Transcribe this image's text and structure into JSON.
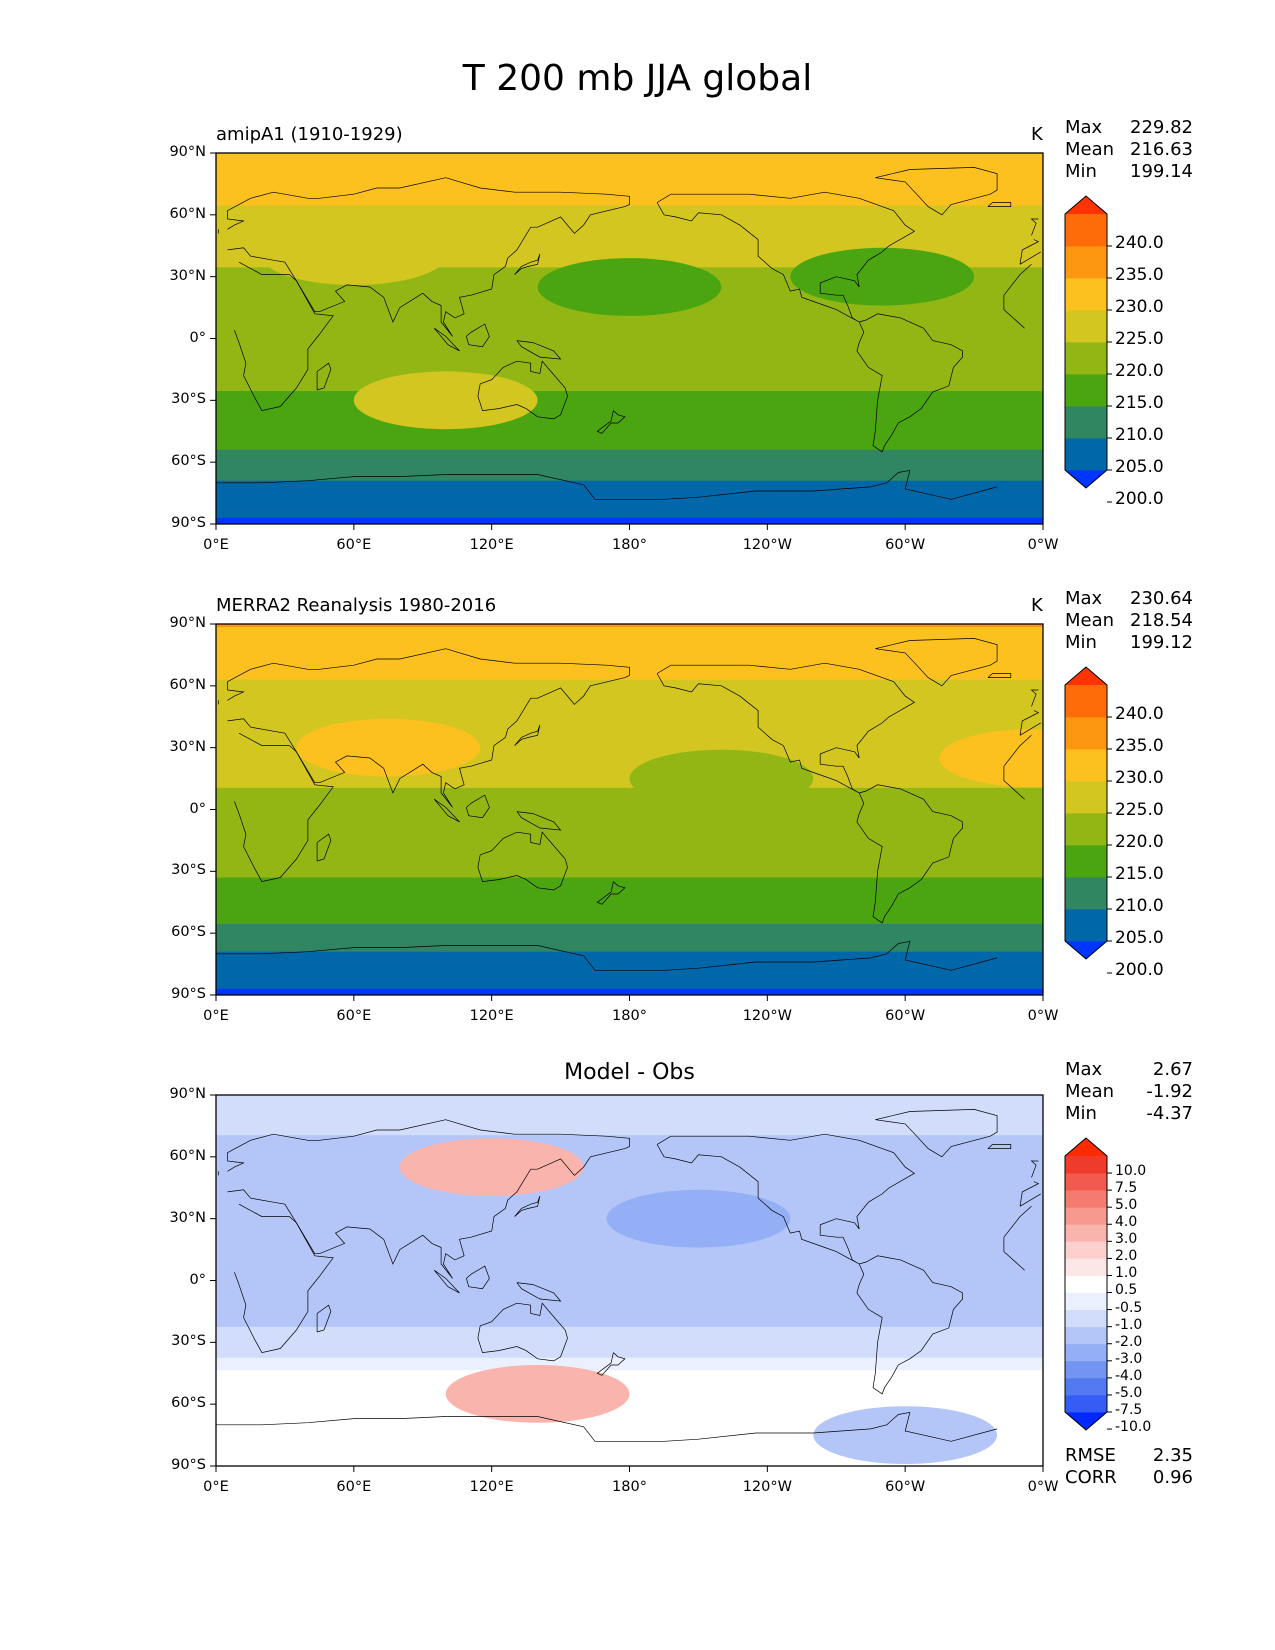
{
  "figure": {
    "title": "T 200 mb JJA global"
  },
  "axes": {
    "lat_ticks": [
      "90°N",
      "60°N",
      "30°N",
      "0°",
      "30°S",
      "60°S",
      "90°S"
    ],
    "lon_ticks": [
      "0°E",
      "60°E",
      "120°E",
      "180°",
      "120°W",
      "60°W",
      "0°W"
    ]
  },
  "panels": [
    {
      "title": "amipA1 (1910-1929)",
      "units": "K",
      "stats": [
        {
          "label": "Max",
          "value": "229.82"
        },
        {
          "label": "Mean",
          "value": "216.63"
        },
        {
          "label": "Min",
          "value": "199.14"
        }
      ]
    },
    {
      "title": "MERRA2 Reanalysis 1980-2016",
      "units": "K",
      "stats": [
        {
          "label": "Max",
          "value": "230.64"
        },
        {
          "label": "Mean",
          "value": "218.54"
        },
        {
          "label": "Min",
          "value": "199.12"
        }
      ]
    },
    {
      "title": "Model - Obs",
      "units": "",
      "stats": [
        {
          "label": "Max",
          "value": "2.67"
        },
        {
          "label": "Mean",
          "value": "-1.92"
        },
        {
          "label": "Min",
          "value": "-4.37"
        }
      ],
      "metrics": [
        {
          "label": "RMSE",
          "value": "2.35"
        },
        {
          "label": "CORR",
          "value": "0.96"
        }
      ]
    }
  ],
  "chart_data": [
    {
      "type": "heatmap",
      "title": "amipA1 (1910-1929)",
      "variable": "T 200 mb JJA",
      "units": "K",
      "xlim": [
        0,
        360
      ],
      "ylim": [
        -90,
        90
      ],
      "levels": [
        195,
        200,
        205,
        210,
        215,
        220,
        225,
        230,
        235,
        240,
        245
      ],
      "colorbar_labels": [
        "240.0",
        "235.0",
        "230.0",
        "225.0",
        "220.0",
        "215.0",
        "210.0",
        "205.0",
        "200.0"
      ],
      "colors": [
        "#0034ff",
        "#0067a9",
        "#318662",
        "#4ba510",
        "#92b715",
        "#d3c621",
        "#fcc11f",
        "#fd9611",
        "#fe6c0a",
        "#ff3304"
      ],
      "zonal_profile": [
        {
          "lat": 90,
          "value": 227
        },
        {
          "lat": 70,
          "value": 226
        },
        {
          "lat": 55,
          "value": 223
        },
        {
          "lat": 40,
          "value": 221
        },
        {
          "lat": 20,
          "value": 217
        },
        {
          "lat": 0,
          "value": 216
        },
        {
          "lat": -20,
          "value": 216
        },
        {
          "lat": -35,
          "value": 213
        },
        {
          "lat": -50,
          "value": 211
        },
        {
          "lat": -62,
          "value": 208
        },
        {
          "lat": -72,
          "value": 204
        },
        {
          "lat": -90,
          "value": 199
        }
      ],
      "features": [
        {
          "lon": 180,
          "lat": 25,
          "value": 213
        },
        {
          "lon": 290,
          "lat": 30,
          "value": 213
        },
        {
          "lon": 60,
          "lat": 40,
          "value": 222
        },
        {
          "lon": 100,
          "lat": -30,
          "value": 222
        }
      ]
    },
    {
      "type": "heatmap",
      "title": "MERRA2 Reanalysis 1980-2016",
      "variable": "T 200 mb JJA",
      "units": "K",
      "xlim": [
        0,
        360
      ],
      "ylim": [
        -90,
        90
      ],
      "levels": [
        195,
        200,
        205,
        210,
        215,
        220,
        225,
        230,
        235,
        240,
        245
      ],
      "colorbar_labels": [
        "240.0",
        "235.0",
        "230.0",
        "225.0",
        "220.0",
        "215.0",
        "210.0",
        "205.0",
        "200.0"
      ],
      "colors": [
        "#0034ff",
        "#0067a9",
        "#318662",
        "#4ba510",
        "#92b715",
        "#d3c621",
        "#fcc11f",
        "#fd9611",
        "#fe6c0a",
        "#ff3304"
      ],
      "zonal_profile": [
        {
          "lat": 90,
          "value": 231
        },
        {
          "lat": 85,
          "value": 227
        },
        {
          "lat": 65,
          "value": 226
        },
        {
          "lat": 55,
          "value": 222
        },
        {
          "lat": 40,
          "value": 222
        },
        {
          "lat": 20,
          "value": 221
        },
        {
          "lat": 0,
          "value": 219
        },
        {
          "lat": -20,
          "value": 220
        },
        {
          "lat": -35,
          "value": 214
        },
        {
          "lat": -50,
          "value": 212
        },
        {
          "lat": -62,
          "value": 208
        },
        {
          "lat": -72,
          "value": 204
        },
        {
          "lat": -90,
          "value": 199
        }
      ],
      "features": [
        {
          "lon": 75,
          "lat": 30,
          "value": 226
        },
        {
          "lon": 220,
          "lat": 15,
          "value": 217
        },
        {
          "lon": 165,
          "lat": -15,
          "value": 217
        },
        {
          "lon": 355,
          "lat": 25,
          "value": 226
        }
      ]
    },
    {
      "type": "heatmap",
      "title": "Model - Obs",
      "units": "K",
      "xlim": [
        0,
        360
      ],
      "ylim": [
        -90,
        90
      ],
      "levels": [
        -15,
        -10,
        -7.5,
        -5,
        -4,
        -3,
        -2,
        -1,
        -0.5,
        0.5,
        1,
        2,
        3,
        4,
        5,
        7.5,
        10,
        15
      ],
      "colorbar_labels": [
        "10.0",
        "7.5",
        "5.0",
        "4.0",
        "3.0",
        "2.0",
        "1.0",
        "0.5",
        "-0.5",
        "-1.0",
        "-2.0",
        "-3.0",
        "-4.0",
        "-5.0",
        "-7.5",
        "-10.0"
      ],
      "colors": [
        "#0028ff",
        "#355df5",
        "#5279f0",
        "#7494f4",
        "#94aff6",
        "#b4c6f8",
        "#d2ddfb",
        "#eaf0fd",
        "#ffffff",
        "#fde6e6",
        "#fcd0cc",
        "#fab4ae",
        "#f8998f",
        "#f57b70",
        "#f25a4d",
        "#ef3b2c",
        "#ff2a00"
      ],
      "zonal_profile": [
        {
          "lat": 90,
          "value": -1.5
        },
        {
          "lat": 70,
          "value": -2.0
        },
        {
          "lat": 50,
          "value": -2.2
        },
        {
          "lat": 30,
          "value": -2.4
        },
        {
          "lat": 10,
          "value": -2.6
        },
        {
          "lat": -10,
          "value": -2.5
        },
        {
          "lat": -28,
          "value": -1.8
        },
        {
          "lat": -40,
          "value": -0.8
        },
        {
          "lat": -50,
          "value": 0.2
        },
        {
          "lat": -62,
          "value": 0.0
        },
        {
          "lat": -75,
          "value": -0.2
        },
        {
          "lat": -90,
          "value": 0.0
        }
      ],
      "features": [
        {
          "lon": 120,
          "lat": 55,
          "value": 2.5
        },
        {
          "lon": 140,
          "lat": -55,
          "value": 2.0
        },
        {
          "lon": 210,
          "lat": 30,
          "value": -4.0
        },
        {
          "lon": 300,
          "lat": -75,
          "value": -3.0
        }
      ]
    }
  ]
}
